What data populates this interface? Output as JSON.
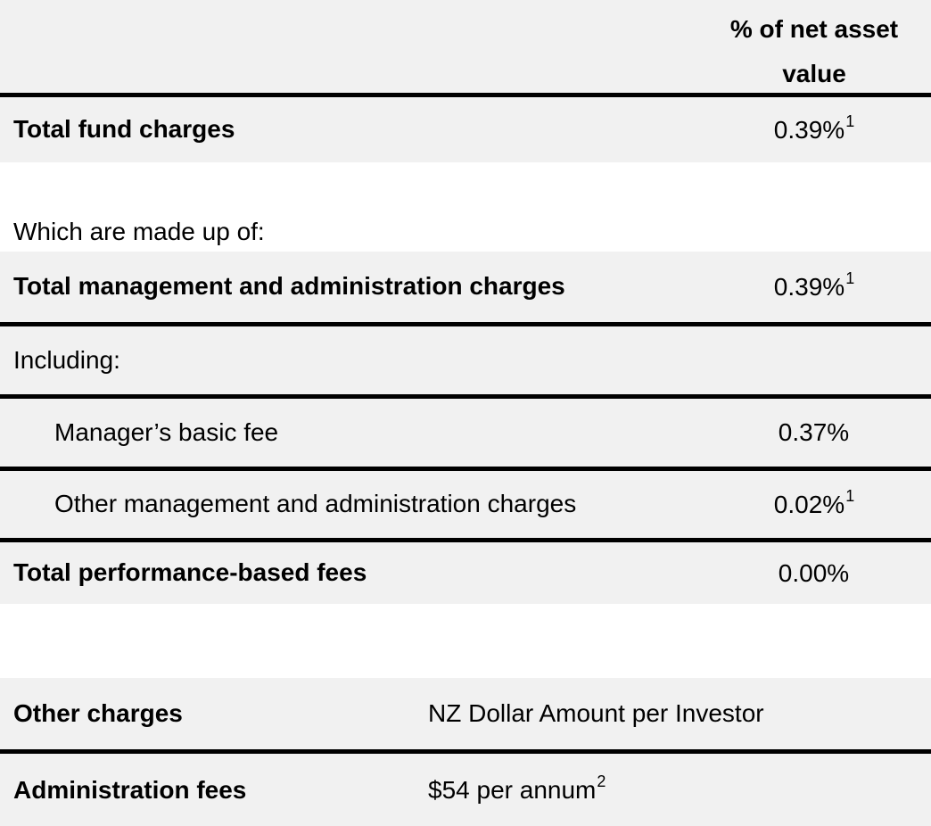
{
  "colors": {
    "row_background": "#f1f1f1",
    "rule": "#000000",
    "text": "#000000",
    "gap_background": "#ffffff"
  },
  "fund_charges_table": {
    "value_column_header": "% of net asset value",
    "section_labels": {
      "made_up_of": "Which are made up of:",
      "including": "Including:"
    },
    "rows": {
      "total_fund_charges": {
        "label": "Total fund charges",
        "value": "0.39%",
        "footnote": "1"
      },
      "total_management_admin": {
        "label": "Total management and administration charges",
        "value": "0.39%",
        "footnote": "1"
      },
      "managers_basic_fee": {
        "label": "Manager’s basic fee",
        "value": "0.37%",
        "footnote": ""
      },
      "other_management_admin": {
        "label": "Other management and administration charges",
        "value": "0.02%",
        "footnote": "1"
      },
      "total_performance_fees": {
        "label": "Total performance-based fees",
        "value": "0.00%",
        "footnote": ""
      }
    }
  },
  "other_charges_table": {
    "header": {
      "label": "Other charges",
      "value_header": "NZ Dollar Amount per Investor"
    },
    "rows": {
      "administration_fees": {
        "label": "Administration fees",
        "value": "$54 per annum",
        "footnote": "2"
      }
    }
  }
}
